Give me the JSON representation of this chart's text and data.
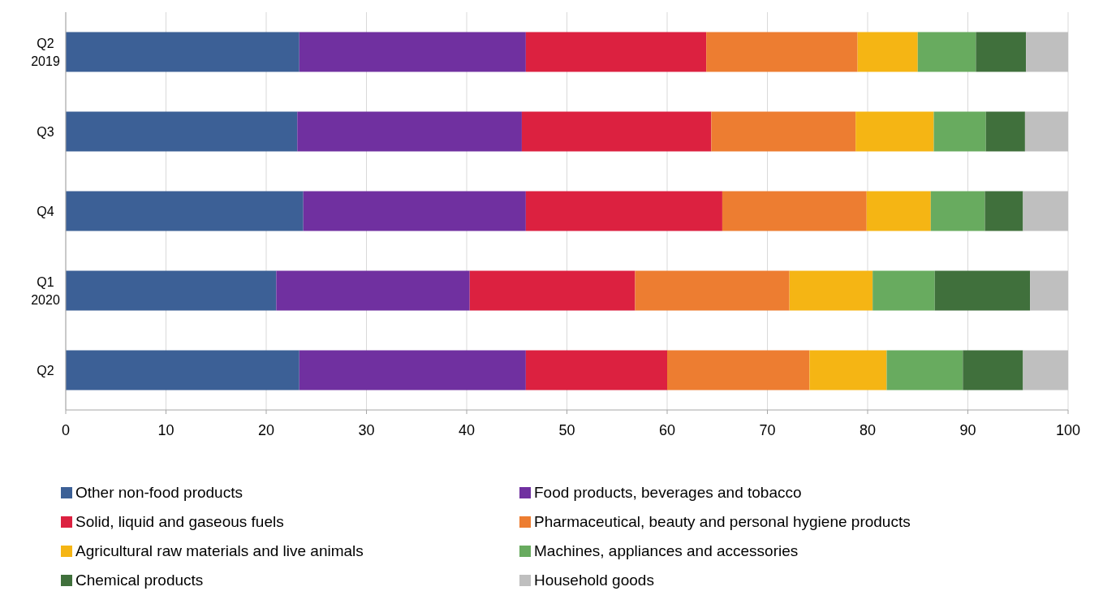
{
  "chart_data": {
    "type": "bar",
    "orientation": "horizontal",
    "stacked": true,
    "categories": [
      "Q2\n2019",
      "Q3",
      "Q4",
      "Q1\n2020",
      "Q2"
    ],
    "series": [
      {
        "name": "Other non-food products",
        "color": "#3c6096",
        "values": [
          23.3,
          23.1,
          23.7,
          21.0,
          23.3
        ]
      },
      {
        "name": "Food products, beverages and tobacco",
        "color": "#7030a0",
        "values": [
          22.6,
          22.4,
          22.2,
          19.3,
          22.6
        ]
      },
      {
        "name": "Solid, liquid and gaseous fuels",
        "color": "#dc2140",
        "values": [
          18.0,
          18.9,
          19.6,
          16.5,
          14.1
        ]
      },
      {
        "name": "Pharmaceutical, beauty and personal hygiene products",
        "color": "#ed7d31",
        "values": [
          15.1,
          14.4,
          14.4,
          15.4,
          14.2
        ]
      },
      {
        "name": "Agricultural raw materials and live animals",
        "color": "#f5b514",
        "values": [
          6.0,
          7.8,
          6.4,
          8.3,
          7.7
        ]
      },
      {
        "name": "Machines, appliances and accessories",
        "color": "#68ab5f",
        "values": [
          5.8,
          5.2,
          5.4,
          6.2,
          7.6
        ]
      },
      {
        "name": "Chemical products",
        "color": "#40703c",
        "values": [
          5.0,
          3.9,
          3.8,
          9.5,
          6.0
        ]
      },
      {
        "name": "Household goods",
        "color": "#bfbfbf",
        "values": [
          4.2,
          4.3,
          4.5,
          3.8,
          4.5
        ]
      }
    ],
    "xlim": [
      0,
      100
    ],
    "xticks": [
      0,
      10,
      20,
      30,
      40,
      50,
      60,
      70,
      80,
      90,
      100
    ],
    "grid": "x",
    "legend": "bottom"
  }
}
